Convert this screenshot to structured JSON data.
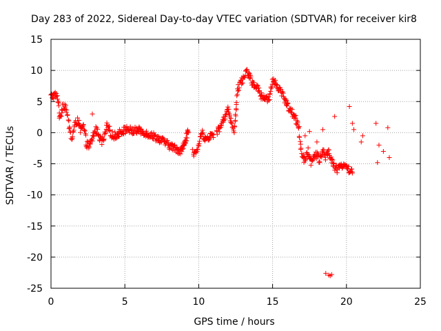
{
  "chart_data": {
    "type": "scatter",
    "title": "Day 283 of 2022, Sidereal Day-to-day VTEC variation (SDTVAR) for receiver kir8",
    "xlabel": "GPS time / hours",
    "ylabel": "SDTVAR / TECUs",
    "xlim": [
      0,
      25
    ],
    "ylim": [
      -25,
      15
    ],
    "xticks": [
      "0",
      "5",
      "10",
      "15",
      "20",
      "25"
    ],
    "yticks": [
      "15",
      "10",
      "5",
      "0",
      "-5",
      "-10",
      "-15",
      "-20",
      "-25"
    ],
    "grid": true,
    "marker": "+",
    "series": [
      {
        "name": "SDTVAR",
        "color": "#ff0000",
        "trace_main": [
          [
            0.0,
            5.8
          ],
          [
            0.3,
            6.1
          ],
          [
            0.5,
            5.2
          ],
          [
            0.6,
            2.0
          ],
          [
            0.8,
            4.5
          ],
          [
            1.0,
            4.2
          ],
          [
            1.2,
            1.5
          ],
          [
            1.4,
            -1.0
          ],
          [
            1.6,
            1.0
          ],
          [
            1.8,
            2.2
          ],
          [
            2.0,
            0.3
          ],
          [
            2.2,
            1.0
          ],
          [
            2.4,
            -1.8
          ],
          [
            2.6,
            -2.2
          ],
          [
            2.8,
            -1.0
          ],
          [
            3.0,
            0.5
          ],
          [
            3.2,
            0.0
          ],
          [
            3.4,
            -1.5
          ],
          [
            3.6,
            -1.0
          ],
          [
            3.8,
            1.0
          ],
          [
            4.0,
            0.2
          ],
          [
            4.2,
            -0.6
          ],
          [
            4.5,
            -0.3
          ],
          [
            4.8,
            0.3
          ],
          [
            5.0,
            0.4
          ],
          [
            5.2,
            0.6
          ],
          [
            5.5,
            0.2
          ],
          [
            5.8,
            0.4
          ],
          [
            6.0,
            0.3
          ],
          [
            6.3,
            0.1
          ],
          [
            6.5,
            -0.2
          ],
          [
            6.8,
            -0.4
          ],
          [
            7.0,
            -0.6
          ],
          [
            7.3,
            -1.0
          ],
          [
            7.6,
            -1.4
          ],
          [
            7.9,
            -1.9
          ],
          [
            8.2,
            -2.3
          ],
          [
            8.5,
            -2.6
          ],
          [
            8.7,
            -2.9
          ],
          [
            8.9,
            -2.6
          ],
          [
            9.0,
            -2.0
          ],
          [
            9.1,
            -1.2
          ],
          [
            9.2,
            -0.5
          ],
          [
            9.3,
            0.0
          ]
        ],
        "trace_high": [
          [
            11.2,
            0.0
          ],
          [
            11.5,
            1.0
          ],
          [
            11.8,
            2.5
          ],
          [
            12.0,
            3.8
          ],
          [
            12.2,
            2.0
          ],
          [
            12.4,
            0.5
          ],
          [
            12.5,
            3.0
          ],
          [
            12.6,
            6.5
          ],
          [
            12.8,
            8.0
          ],
          [
            13.0,
            8.5
          ],
          [
            13.2,
            9.8
          ],
          [
            13.4,
            9.5
          ],
          [
            13.6,
            8.0
          ],
          [
            13.8,
            7.5
          ],
          [
            14.0,
            7.0
          ],
          [
            14.2,
            6.0
          ],
          [
            14.4,
            5.5
          ],
          [
            14.6,
            5.3
          ],
          [
            14.8,
            6.0
          ],
          [
            15.0,
            8.5
          ],
          [
            15.2,
            8.0
          ],
          [
            15.4,
            7.2
          ],
          [
            15.6,
            6.5
          ],
          [
            15.8,
            5.5
          ],
          [
            16.0,
            4.5
          ],
          [
            16.2,
            3.5
          ],
          [
            16.4,
            3.0
          ],
          [
            16.6,
            2.0
          ],
          [
            16.8,
            1.0
          ]
        ],
        "trace_low": [
          [
            16.8,
            -1.0
          ],
          [
            17.0,
            -3.5
          ],
          [
            17.2,
            -4.5
          ],
          [
            17.4,
            -3.0
          ],
          [
            17.6,
            -5.0
          ],
          [
            17.8,
            -4.0
          ],
          [
            18.0,
            -3.5
          ],
          [
            18.2,
            -4.5
          ],
          [
            18.4,
            -3.0
          ],
          [
            18.6,
            -4.0
          ],
          [
            18.8,
            -3.0
          ],
          [
            19.0,
            -4.5
          ],
          [
            19.2,
            -5.5
          ],
          [
            19.4,
            -6.0
          ],
          [
            19.6,
            -5.5
          ],
          [
            19.8,
            -5.0
          ],
          [
            20.0,
            -5.5
          ],
          [
            20.2,
            -6.0
          ],
          [
            20.4,
            -6.5
          ]
        ],
        "trace_mid": [
          [
            9.6,
            -3.0
          ],
          [
            9.8,
            -3.5
          ],
          [
            10.0,
            -2.0
          ],
          [
            10.2,
            0.0
          ],
          [
            10.4,
            -0.8
          ],
          [
            10.6,
            -1.0
          ],
          [
            10.8,
            -0.5
          ],
          [
            11.0,
            -0.3
          ]
        ],
        "outliers": [
          [
            18.6,
            -22.6
          ],
          [
            18.8,
            -22.9
          ],
          [
            18.9,
            -23.0
          ],
          [
            19.0,
            -22.8
          ],
          [
            19.2,
            2.6
          ],
          [
            20.2,
            4.2
          ],
          [
            20.4,
            1.5
          ],
          [
            20.5,
            0.5
          ],
          [
            21.0,
            -1.5
          ],
          [
            21.1,
            -0.5
          ],
          [
            22.0,
            1.5
          ],
          [
            22.1,
            -4.8
          ],
          [
            22.2,
            -2.0
          ],
          [
            22.5,
            -3.0
          ],
          [
            22.8,
            0.8
          ],
          [
            22.9,
            -4.0
          ],
          [
            2.8,
            3.0
          ],
          [
            17.2,
            -0.5
          ],
          [
            17.5,
            0.2
          ],
          [
            18.0,
            -1.5
          ],
          [
            18.4,
            0.5
          ]
        ]
      }
    ]
  }
}
